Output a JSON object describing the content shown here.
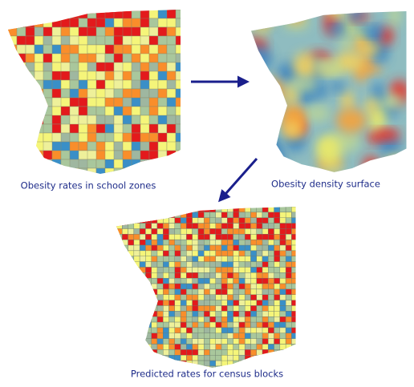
{
  "maps": [
    {
      "caption": "Obesity rates in school zones"
    },
    {
      "caption": "Obesity density surface"
    },
    {
      "caption": "Predicted rates for census blocks"
    }
  ]
}
